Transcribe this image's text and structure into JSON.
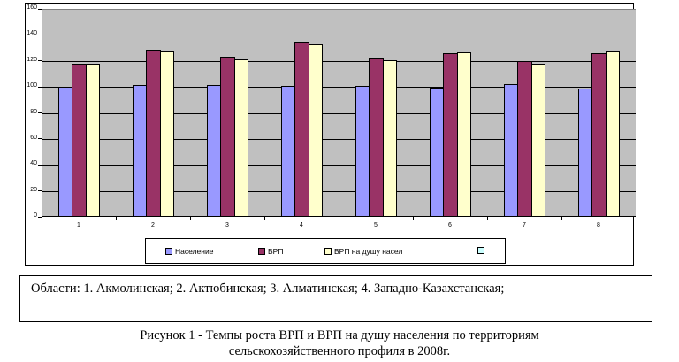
{
  "chart_data": {
    "type": "bar",
    "title": "",
    "xlabel": "",
    "ylabel": "",
    "ylim": [
      0,
      160
    ],
    "yticks": [
      0,
      20,
      40,
      60,
      80,
      100,
      120,
      140,
      160
    ],
    "grid": true,
    "legend_position": "bottom",
    "categories": [
      "1",
      "2",
      "3",
      "4",
      "5",
      "6",
      "7",
      "8"
    ],
    "series": [
      {
        "name": "Население",
        "color": "#9999ff",
        "values": [
          100,
          101.6,
          101.5,
          101,
          101,
          99.7,
          102.3,
          99
        ]
      },
      {
        "name": "ВРП",
        "color": "#993366",
        "values": [
          118,
          128,
          123.4,
          134,
          122,
          126,
          120,
          126
        ]
      },
      {
        "name": "ВРП на душу насел",
        "color": "#ffffcc",
        "values": [
          118,
          127,
          121.4,
          133,
          120.5,
          126.5,
          118,
          127.5
        ]
      },
      {
        "name": "",
        "color": "#ccffff",
        "values": []
      }
    ]
  },
  "colors": {
    "plot_background": "#c0c0c0",
    "frame": "#000000"
  },
  "textbox": {
    "text": "Области: 1. Акмолинская;  2. Актюбинская;  3. Алматинская;  4. Западно-Казахстанская;"
  },
  "caption": {
    "line1": "Рисунок  1 - Темпы роста ВРП и ВРП на душу населения по территориям",
    "line2": "сельскохозяйственного профиля в 2008г."
  }
}
